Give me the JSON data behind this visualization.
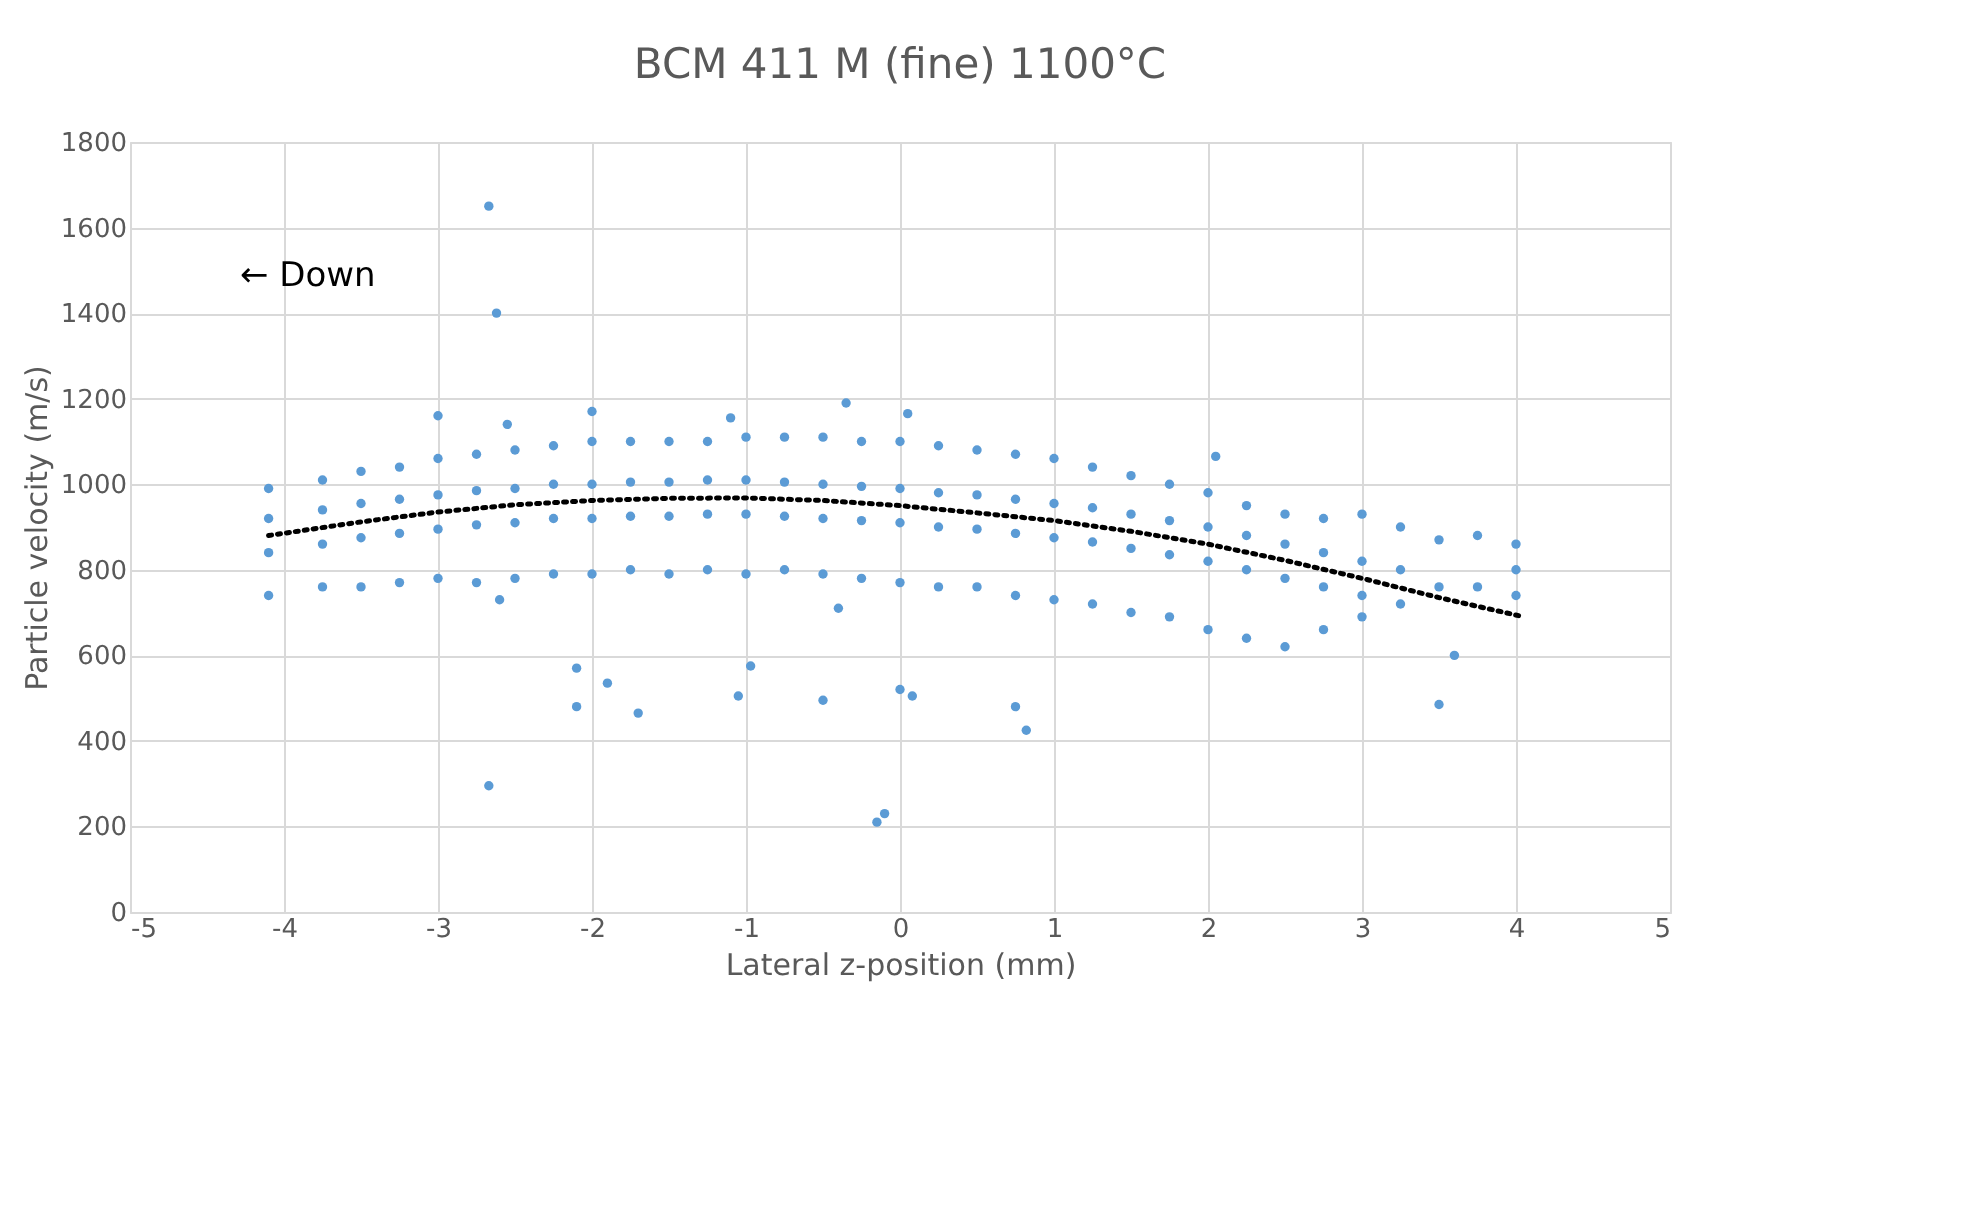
{
  "chart_data": {
    "type": "scatter",
    "title": "BCM 411 M (fine) 1100°C",
    "xlabel": "Lateral z-position (mm)",
    "ylabel": "Particle velocity (m/s)",
    "xlim": [
      -5,
      5
    ],
    "xticks": [
      -5,
      -4,
      -3,
      -2,
      -1,
      0,
      1,
      2,
      3,
      4,
      5
    ],
    "ylim": [
      0,
      1800
    ],
    "yticks": [
      0,
      200,
      400,
      600,
      800,
      1000,
      1200,
      1400,
      1600,
      1800
    ],
    "grid": true,
    "marker": "circle",
    "annotations": [
      "← Down"
    ],
    "series": [
      {
        "color": "#5b9bd5",
        "x": [
          -4.1,
          -4.1,
          -4.1,
          -4.1,
          -3.75,
          -3.75,
          -3.75,
          -3.75,
          -3.5,
          -3.5,
          -3.5,
          -3.5,
          -3.25,
          -3.25,
          -3.25,
          -3.25,
          -3,
          -3,
          -3,
          -3,
          -2.75,
          -2.75,
          -2.75,
          -2.75,
          -2.5,
          -2.5,
          -2.5,
          -2.5,
          -2.25,
          -2.25,
          -2.25,
          -2.25,
          -2,
          -2,
          -2,
          -2,
          -1.75,
          -1.75,
          -1.75,
          -1.75,
          -1.5,
          -1.5,
          -1.5,
          -1.5,
          -1.25,
          -1.25,
          -1.25,
          -1.25,
          -1,
          -1,
          -1,
          -1,
          -0.75,
          -0.75,
          -0.75,
          -0.75,
          -0.5,
          -0.5,
          -0.5,
          -0.5,
          -0.25,
          -0.25,
          -0.25,
          -0.25,
          0,
          0,
          0,
          0,
          0.25,
          0.25,
          0.25,
          0.25,
          0.5,
          0.5,
          0.5,
          0.5,
          0.75,
          0.75,
          0.75,
          0.75,
          1,
          1,
          1,
          1,
          1.25,
          1.25,
          1.25,
          1.25,
          1.5,
          1.5,
          1.5,
          1.5,
          1.75,
          1.75,
          1.75,
          1.75,
          2,
          2,
          2,
          2,
          2.25,
          2.25,
          2.25,
          2.25,
          2.5,
          2.5,
          2.5,
          2.5,
          2.75,
          2.75,
          2.75,
          2.75,
          3,
          3,
          3,
          3,
          3.25,
          3.25,
          3.25,
          3.5,
          3.5,
          3.75,
          3.75,
          4,
          4,
          4,
          -2.67,
          -2.62,
          -2.67,
          -2.6,
          -2.1,
          -2.1,
          -1.9,
          -1.7,
          -1.05,
          -0.97,
          -0.5,
          -0.4,
          0,
          0.08,
          -0.15,
          -0.1,
          0.75,
          0.82,
          3.5,
          3.6,
          -3.0,
          -2.0,
          -1.1,
          -0.35,
          0.05,
          2.05,
          -2.55
        ],
        "values": [
          990,
          920,
          840,
          740,
          1010,
          940,
          860,
          760,
          1030,
          955,
          875,
          760,
          1040,
          965,
          885,
          770,
          1060,
          975,
          895,
          780,
          1070,
          985,
          905,
          770,
          1080,
          990,
          910,
          780,
          1090,
          1000,
          920,
          790,
          1100,
          1000,
          920,
          790,
          1100,
          1005,
          925,
          800,
          1100,
          1005,
          925,
          790,
          1100,
          1010,
          930,
          800,
          1110,
          1010,
          930,
          790,
          1110,
          1005,
          925,
          800,
          1110,
          1000,
          920,
          790,
          1100,
          995,
          915,
          780,
          1100,
          990,
          910,
          770,
          1090,
          980,
          900,
          760,
          1080,
          975,
          895,
          760,
          1070,
          965,
          885,
          740,
          1060,
          955,
          875,
          730,
          1040,
          945,
          865,
          720,
          1020,
          930,
          850,
          700,
          1000,
          915,
          835,
          690,
          980,
          900,
          820,
          660,
          950,
          880,
          800,
          640,
          930,
          860,
          780,
          620,
          920,
          840,
          760,
          660,
          930,
          820,
          740,
          690,
          900,
          800,
          720,
          870,
          760,
          880,
          760,
          860,
          800,
          740,
          295,
          1400,
          1650,
          730,
          570,
          480,
          535,
          465,
          505,
          575,
          495,
          710,
          520,
          505,
          210,
          230,
          480,
          425,
          485,
          600,
          1160,
          1170,
          1155,
          1190,
          1165,
          1065,
          1140
        ]
      },
      {
        "type": "line",
        "color": "#000000",
        "line_style": "dotted",
        "marker": "none",
        "x": [
          -4.1,
          -3.5,
          -3,
          -2.5,
          -2,
          -1.5,
          -1,
          -0.5,
          0,
          0.5,
          1,
          1.5,
          2,
          2.5,
          3,
          3.5,
          4.05
        ],
        "values": [
          880,
          912,
          935,
          952,
          962,
          967,
          968,
          962,
          950,
          933,
          915,
          890,
          860,
          822,
          780,
          735,
          690
        ]
      }
    ]
  }
}
